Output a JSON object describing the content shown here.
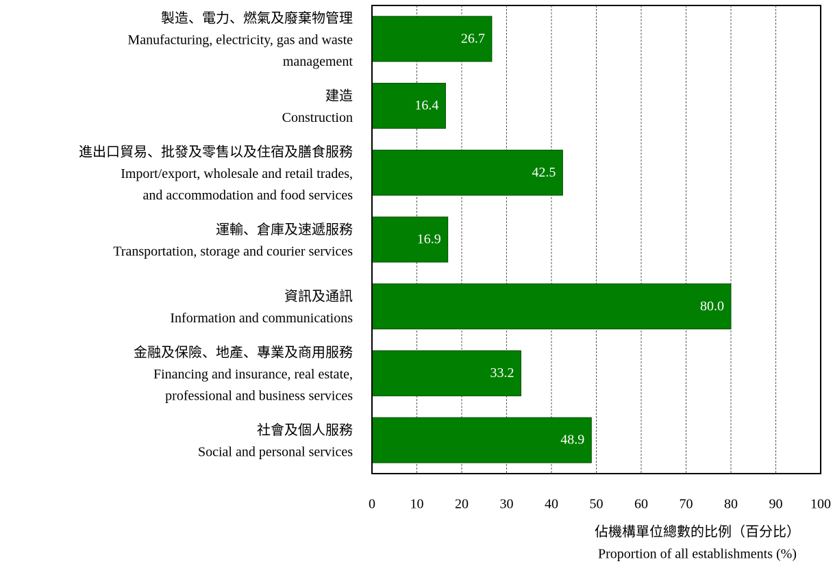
{
  "chart_data": {
    "type": "hbar",
    "categories": [
      [
        "製造、電力、燃氣及廢棄物管理",
        "Manufacturing, electricity, gas and waste",
        "management"
      ],
      [
        "建造",
        "Construction"
      ],
      [
        "進出口貿易、批發及零售以及住宿及膳食服務",
        "Import/export, wholesale and retail trades,",
        "and accommodation and food services"
      ],
      [
        "運輸、倉庫及速遞服務",
        "Transportation, storage and courier services"
      ],
      [
        "資訊及通訊",
        "Information and communications"
      ],
      [
        "金融及保險、地產、專業及商用服務",
        "Financing and insurance, real estate,",
        "professional and business services"
      ],
      [
        "社會及個人服務",
        "Social and personal services"
      ]
    ],
    "values": [
      26.7,
      16.4,
      42.5,
      16.9,
      80.0,
      33.2,
      48.9
    ],
    "value_labels": [
      "26.7",
      "16.4",
      "42.5",
      "16.9",
      "80.0",
      "33.2",
      "48.9"
    ],
    "color": "#007f00",
    "xlabel": [
      "佔機構單位總數的比例（百分比）",
      "Proportion of all establishments (%)"
    ],
    "xlim": [
      0,
      100
    ],
    "xticks": [
      0,
      10,
      20,
      30,
      40,
      50,
      60,
      70,
      80,
      90,
      100
    ],
    "grid": true
  }
}
